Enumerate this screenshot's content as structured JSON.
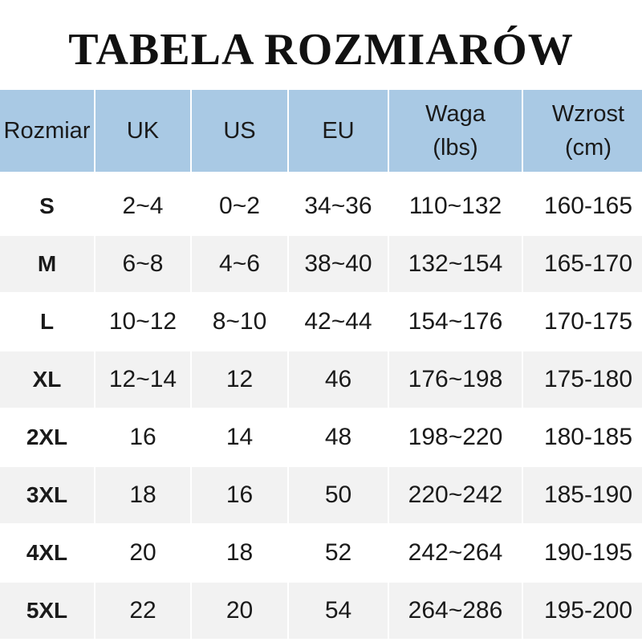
{
  "title": "TABELA ROZMIARÓW",
  "colors": {
    "header_bg": "#a9c9e4",
    "alt_row_bg": "#f2f2f2"
  },
  "headers": [
    "Rozmiar",
    "UK",
    "US",
    "EU",
    "Waga\n(lbs)",
    "Wzrost\n(cm)"
  ],
  "header_lines": [
    [
      "Rozmiar"
    ],
    [
      "UK"
    ],
    [
      "US"
    ],
    [
      "EU"
    ],
    [
      "Waga",
      "(lbs)"
    ],
    [
      "Wzrost",
      "(cm)"
    ]
  ],
  "rows": [
    [
      "S",
      "2~4",
      "0~2",
      "34~36",
      "110~132",
      "160-165"
    ],
    [
      "M",
      "6~8",
      "4~6",
      "38~40",
      "132~154",
      "165-170"
    ],
    [
      "L",
      "10~12",
      "8~10",
      "42~44",
      "154~176",
      "170-175"
    ],
    [
      "XL",
      "12~14",
      "12",
      "46",
      "176~198",
      "175-180"
    ],
    [
      "2XL",
      "16",
      "14",
      "48",
      "198~220",
      "180-185"
    ],
    [
      "3XL",
      "18",
      "16",
      "50",
      "220~242",
      "185-190"
    ],
    [
      "4XL",
      "20",
      "18",
      "52",
      "242~264",
      "190-195"
    ],
    [
      "5XL",
      "22",
      "20",
      "54",
      "264~286",
      "195-200"
    ]
  ]
}
